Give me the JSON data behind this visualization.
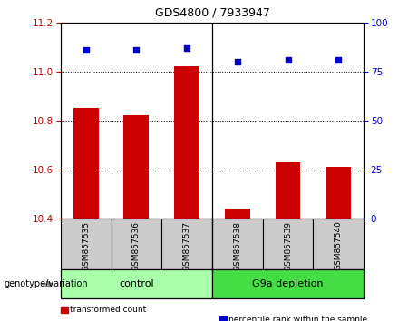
{
  "title": "GDS4800 / 7933947",
  "samples": [
    "GSM857535",
    "GSM857536",
    "GSM857537",
    "GSM857538",
    "GSM857539",
    "GSM857540"
  ],
  "bar_values": [
    10.85,
    10.82,
    11.02,
    10.44,
    10.63,
    10.61
  ],
  "percentile_values": [
    86,
    86,
    87,
    80,
    81,
    81
  ],
  "bar_color": "#cc0000",
  "percentile_color": "#0000cc",
  "ylim_left": [
    10.4,
    11.2
  ],
  "ylim_right": [
    0,
    100
  ],
  "yticks_left": [
    10.4,
    10.6,
    10.8,
    11.0,
    11.2
  ],
  "yticks_right": [
    0,
    25,
    50,
    75,
    100
  ],
  "groups": [
    {
      "label": "control",
      "indices": [
        0,
        1,
        2
      ],
      "color": "#aaffaa"
    },
    {
      "label": "G9a depletion",
      "indices": [
        3,
        4,
        5
      ],
      "color": "#44dd44"
    }
  ],
  "group_label_left": "genotype/variation",
  "legend_items": [
    {
      "color": "#cc0000",
      "label": "transformed count"
    },
    {
      "color": "#0000cc",
      "label": "percentile rank within the sample"
    }
  ],
  "bar_width": 0.5,
  "tick_label_color_left": "#cc0000",
  "tick_label_color_right": "#0000cc",
  "background_label": "#cccccc",
  "title_fontsize": 9
}
